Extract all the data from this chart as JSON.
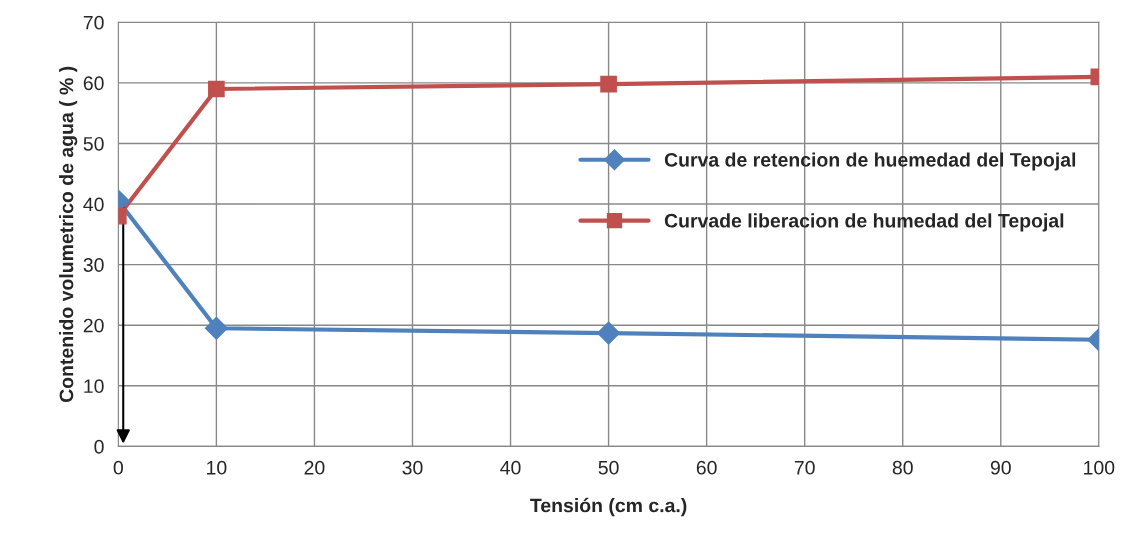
{
  "chart_data": {
    "type": "line",
    "xlabel": "Tensión (cm c.a.)",
    "ylabel": "Contenido volumetrico de agua ( % )",
    "x": [
      0,
      10,
      50,
      100
    ],
    "series": [
      {
        "name": "Curva de retencion de huemedad del Tepojal",
        "color": "#4f81bd",
        "marker": "diamond",
        "values": [
          40.5,
          19.5,
          18.7,
          17.6
        ]
      },
      {
        "name": "Curvade liberacion de humedad del Tepojal",
        "color": "#c0504d",
        "marker": "square",
        "values": [
          38,
          59,
          59.8,
          61
        ]
      }
    ],
    "xlim": [
      0,
      100
    ],
    "xticks": [
      0,
      10,
      20,
      30,
      40,
      50,
      60,
      70,
      80,
      90,
      100
    ],
    "ylim": [
      0,
      70
    ],
    "yticks": [
      0,
      10,
      20,
      30,
      40,
      50,
      60,
      70
    ],
    "grid": true,
    "legend": "right"
  }
}
